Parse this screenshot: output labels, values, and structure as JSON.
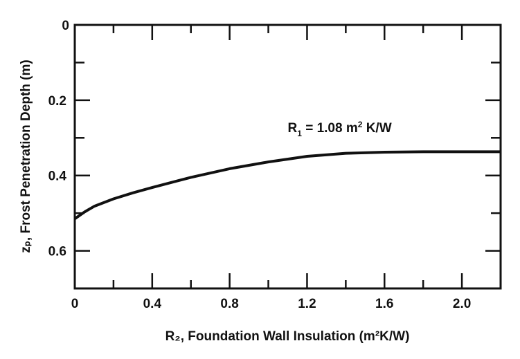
{
  "chart_data": {
    "type": "line",
    "title": "",
    "xlabel": "R₂, Foundation Wall Insulation (m²K/W)",
    "ylabel": "zₚ, Frost Penetration Depth (m)",
    "xlim": [
      0,
      2.2
    ],
    "ylim": [
      0,
      0.7
    ],
    "y_inverted": true,
    "grid": false,
    "x_ticks": [
      0,
      0.4,
      0.8,
      1.2,
      1.6,
      2.0
    ],
    "x_tick_labels": [
      "0",
      "0.4",
      "0.8",
      "1.2",
      "1.6",
      "2.0"
    ],
    "x_minor_ticks": [
      0.2,
      0.6,
      1.0,
      1.4,
      1.8
    ],
    "y_ticks": [
      0,
      0.2,
      0.4,
      0.6
    ],
    "y_tick_labels": [
      "0",
      "0.2",
      "0.4",
      "0.6"
    ],
    "y_minor_ticks": [
      0.1,
      0.3,
      0.5
    ],
    "series": [
      {
        "name": "R₁ = 1.08 m²K/W",
        "x": [
          0,
          0.05,
          0.1,
          0.2,
          0.3,
          0.4,
          0.6,
          0.8,
          1.0,
          1.2,
          1.4,
          1.6,
          1.8,
          2.0,
          2.2
        ],
        "y": [
          0.515,
          0.497,
          0.482,
          0.462,
          0.446,
          0.432,
          0.405,
          0.382,
          0.364,
          0.349,
          0.341,
          0.338,
          0.337,
          0.337,
          0.337
        ]
      }
    ],
    "annotations": [
      {
        "text_main": "R",
        "text_sub": "1",
        "text_rest": " = 1.08 m",
        "text_sup": "2",
        "text_end": " K/W",
        "x": 1.1,
        "y": 0.285
      }
    ]
  }
}
